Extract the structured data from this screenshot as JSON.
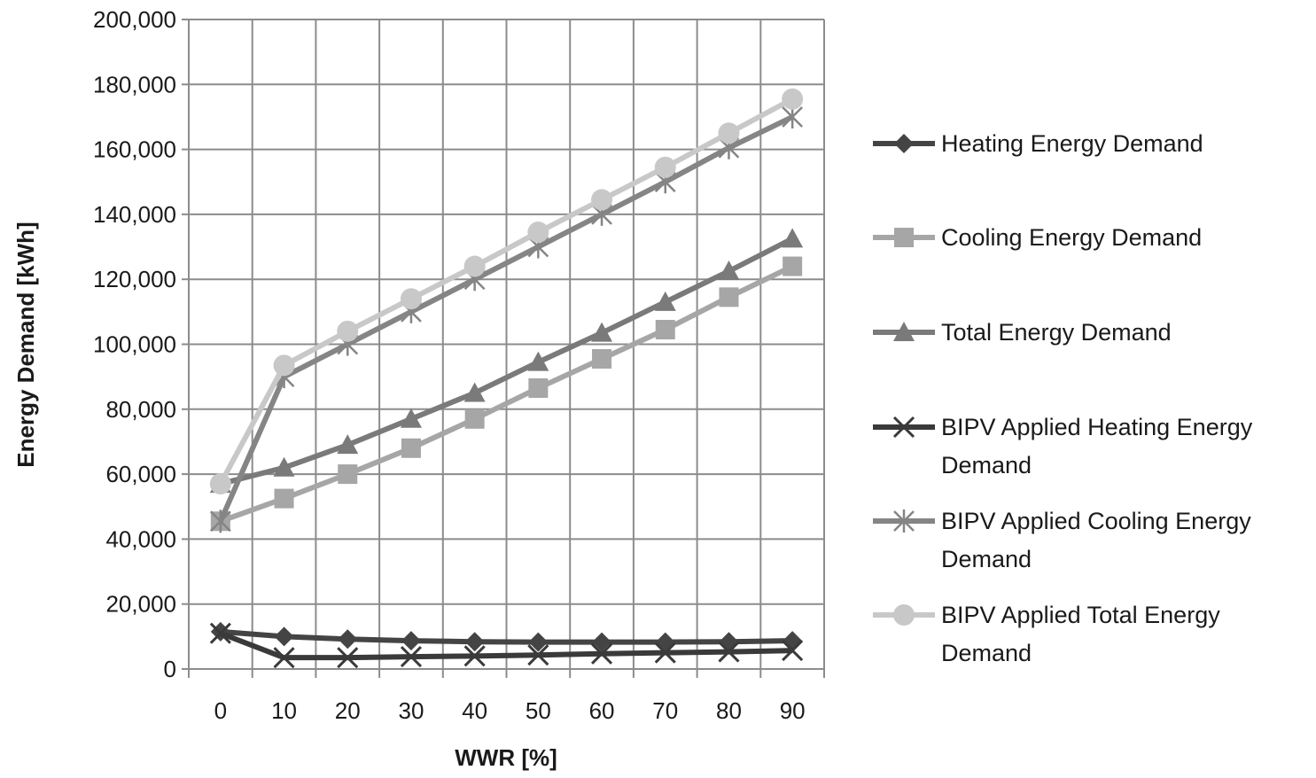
{
  "chart_data": {
    "type": "line",
    "title": "",
    "xlabel": "WWR [%]",
    "ylabel": "Energy Demand [kWh]",
    "categories": [
      "0",
      "10",
      "20",
      "30",
      "40",
      "50",
      "60",
      "70",
      "80",
      "90"
    ],
    "ylim": [
      0,
      200000
    ],
    "ytick_labels": [
      "0",
      "20,000",
      "40,000",
      "60,000",
      "80,000",
      "100,000",
      "120,000",
      "140,000",
      "160,000",
      "180,000",
      "200,000"
    ],
    "grid": true,
    "legend_position": "right",
    "series": [
      {
        "name": "Heating Energy Demand",
        "color": "#444444",
        "marker": "diamond",
        "values": [
          11500,
          10000,
          9200,
          8700,
          8400,
          8300,
          8300,
          8300,
          8400,
          8700
        ]
      },
      {
        "name": "Cooling Energy Demand",
        "color": "#a6a6a6",
        "marker": "square",
        "values": [
          45500,
          52500,
          60000,
          68000,
          77000,
          86500,
          95500,
          104500,
          114500,
          124000
        ]
      },
      {
        "name": "Total Energy Demand",
        "color": "#7a7a7a",
        "marker": "triangle",
        "values": [
          57000,
          62000,
          69000,
          77000,
          85000,
          94500,
          103500,
          113000,
          122500,
          132500
        ]
      },
      {
        "name": "BIPV Applied Heating Energy Demand",
        "color": "#3a3a3a",
        "marker": "x",
        "values": [
          11000,
          3500,
          3500,
          3800,
          4000,
          4300,
          4700,
          5000,
          5300,
          5700
        ]
      },
      {
        "name": "BIPV Applied Cooling Energy Demand",
        "color": "#858585",
        "marker": "asterisk",
        "values": [
          45500,
          90000,
          100000,
          110000,
          120000,
          130000,
          140000,
          150000,
          160500,
          170000
        ]
      },
      {
        "name": "BIPV Applied Total Energy Demand",
        "color": "#c8c8c8",
        "marker": "circle",
        "values": [
          57000,
          93500,
          104000,
          114000,
          124000,
          134500,
          144500,
          154500,
          165000,
          175500
        ]
      }
    ]
  }
}
